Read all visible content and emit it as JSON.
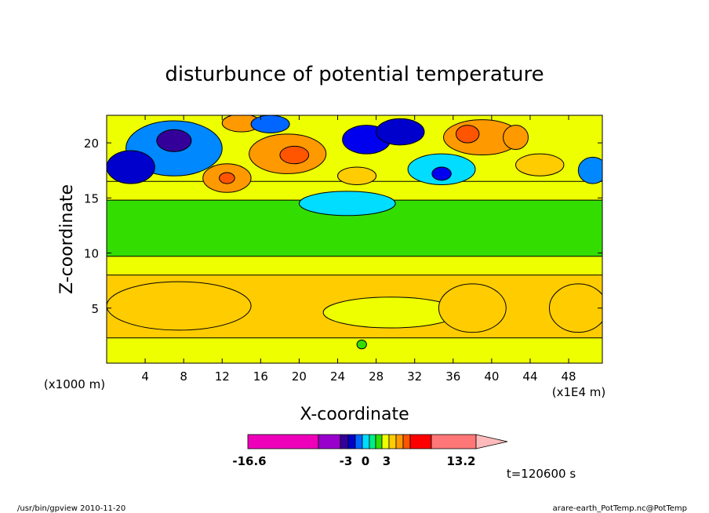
{
  "chart_data": {
    "type": "heatmap",
    "title": "disturbunce of potential temperature",
    "xlabel": "X-coordinate",
    "ylabel": "Z-coordinate",
    "x_unit": "(x1000 m)",
    "x_scale_note": "(x1E4 m)",
    "xlim": [
      0,
      51.5
    ],
    "ylim": [
      0,
      22.5
    ],
    "x_ticks": [
      "4",
      "8",
      "12",
      "16",
      "20",
      "24",
      "28",
      "32",
      "36",
      "40",
      "44",
      "48"
    ],
    "y_ticks": [
      "5",
      "10",
      "15",
      "20"
    ],
    "colorbar_labels": [
      "-16.6",
      "-3",
      "0",
      "3",
      "13.2"
    ],
    "time_label": "t=120600 s",
    "bands": [
      {
        "z_bottom": 0,
        "z_top": 2.3,
        "color": "#eeff00"
      },
      {
        "z_bottom": 2.3,
        "z_top": 8.0,
        "color": "#ffcc00"
      },
      {
        "z_bottom": 8.0,
        "z_top": 9.7,
        "color": "#eeff00"
      },
      {
        "z_bottom": 9.7,
        "z_top": 14.8,
        "color": "#33dd00"
      },
      {
        "z_bottom": 14.8,
        "z_top": 16.5,
        "color": "#eeff00"
      },
      {
        "z_bottom": 16.5,
        "z_top": 22.5,
        "color": "#eeff00"
      }
    ],
    "features": [
      {
        "x": 7.5,
        "z": 5.2,
        "rx": 7.5,
        "rz": 2.2,
        "color": "#ffcc00"
      },
      {
        "x": 29.5,
        "z": 4.6,
        "rx": 7,
        "rz": 1.4,
        "color": "#eeff00"
      },
      {
        "x": 38,
        "z": 5.0,
        "rx": 3.5,
        "rz": 2.2,
        "color": "#ffcc00"
      },
      {
        "x": 49,
        "z": 5.0,
        "rx": 3,
        "rz": 2.2,
        "color": "#ffcc00"
      },
      {
        "x": 26.5,
        "z": 1.7,
        "rx": 0.5,
        "rz": 0.4,
        "color": "#33dd00"
      },
      {
        "x": 25,
        "z": 14.5,
        "rx": 5,
        "rz": 1.1,
        "color": "#00ddff"
      },
      {
        "x": 7,
        "z": 19.5,
        "rx": 5,
        "rz": 2.5,
        "color": "#0088ff"
      },
      {
        "x": 2.5,
        "z": 17.8,
        "rx": 2.5,
        "rz": 1.5,
        "color": "#0000cc"
      },
      {
        "x": 7,
        "z": 20.2,
        "rx": 1.8,
        "rz": 1.0,
        "color": "#330099"
      },
      {
        "x": 14,
        "z": 21.8,
        "rx": 2,
        "rz": 0.8,
        "color": "#ff9900"
      },
      {
        "x": 18.8,
        "z": 19.0,
        "rx": 4,
        "rz": 1.8,
        "color": "#ff9900"
      },
      {
        "x": 19.5,
        "z": 18.9,
        "rx": 1.5,
        "rz": 0.8,
        "color": "#ff5500"
      },
      {
        "x": 12.5,
        "z": 16.8,
        "rx": 2.5,
        "rz": 1.3,
        "color": "#ff9900"
      },
      {
        "x": 12.5,
        "z": 16.8,
        "rx": 0.8,
        "rz": 0.5,
        "color": "#ff5500"
      },
      {
        "x": 17,
        "z": 21.7,
        "rx": 2,
        "rz": 0.8,
        "color": "#0066ff"
      },
      {
        "x": 27,
        "z": 20.3,
        "rx": 2.5,
        "rz": 1.3,
        "color": "#0000ee"
      },
      {
        "x": 30.5,
        "z": 21.0,
        "rx": 2.5,
        "rz": 1.2,
        "color": "#0000cc"
      },
      {
        "x": 34.8,
        "z": 17.6,
        "rx": 3.5,
        "rz": 1.4,
        "color": "#00ddff"
      },
      {
        "x": 34.8,
        "z": 17.2,
        "rx": 1.0,
        "rz": 0.6,
        "color": "#0000ee"
      },
      {
        "x": 39,
        "z": 20.5,
        "rx": 4,
        "rz": 1.6,
        "color": "#ff9900"
      },
      {
        "x": 37.5,
        "z": 20.8,
        "rx": 1.2,
        "rz": 0.8,
        "color": "#ff5500"
      },
      {
        "x": 42.5,
        "z": 20.5,
        "rx": 1.3,
        "rz": 1.1,
        "color": "#ff9900"
      },
      {
        "x": 45,
        "z": 18.0,
        "rx": 2.5,
        "rz": 1.0,
        "color": "#ffcc00"
      },
      {
        "x": 50.5,
        "z": 17.5,
        "rx": 1.5,
        "rz": 1.2,
        "color": "#0088ff"
      },
      {
        "x": 26,
        "z": 17.0,
        "rx": 2,
        "rz": 0.8,
        "color": "#ffcc00"
      }
    ],
    "colorbar_segments": [
      {
        "color": "#ee00bb",
        "width": 90
      },
      {
        "color": "#9900cc",
        "width": 28
      },
      {
        "color": "#330099",
        "width": 10
      },
      {
        "color": "#0000cc",
        "width": 9
      },
      {
        "color": "#0066ff",
        "width": 9
      },
      {
        "color": "#00ddff",
        "width": 9
      },
      {
        "color": "#00ee88",
        "width": 8
      },
      {
        "color": "#33dd00",
        "width": 8
      },
      {
        "color": "#eeff00",
        "width": 9
      },
      {
        "color": "#ffcc00",
        "width": 9
      },
      {
        "color": "#ff9900",
        "width": 9
      },
      {
        "color": "#ff5500",
        "width": 9
      },
      {
        "color": "#ff0000",
        "width": 27
      },
      {
        "color": "#ff7777",
        "width": 57
      }
    ],
    "colorbar_tip_color": "#ffbbbb"
  },
  "footer": {
    "left": "/usr/bin/gpview  2010-11-20",
    "right": "arare-earth_PotTemp.nc@PotTemp"
  }
}
